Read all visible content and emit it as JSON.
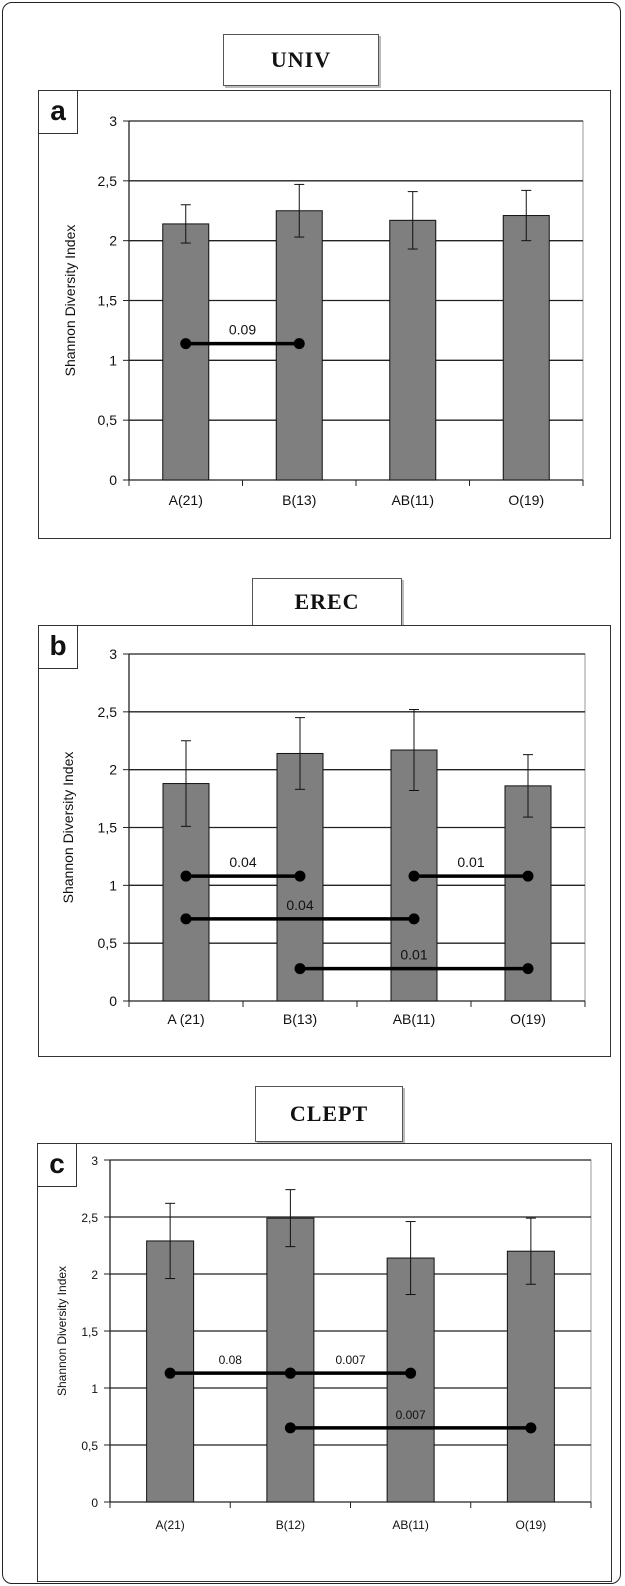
{
  "panels": [
    {
      "letter": "a",
      "title": "UNIV",
      "chart_data": {
        "type": "bar",
        "ylabel": "Shannon Diversity Index",
        "ylim": [
          0,
          3
        ],
        "yticks": [
          "0",
          "0,5",
          "1",
          "1,5",
          "2",
          "2,5",
          "3"
        ],
        "categories": [
          "A(21)",
          "B(13)",
          "AB(11)",
          "O(19)"
        ],
        "values": [
          2.14,
          2.25,
          2.17,
          2.21
        ],
        "errors": [
          0.16,
          0.22,
          0.24,
          0.21
        ],
        "grid": true,
        "comparisons": [
          {
            "from": 0,
            "to": 1,
            "y": 1.14,
            "label": "0.09"
          }
        ]
      }
    },
    {
      "letter": "b",
      "title": "EREC",
      "chart_data": {
        "type": "bar",
        "ylabel": "Shannon Diversity Index",
        "ylim": [
          0,
          3
        ],
        "yticks": [
          "0",
          "0,5",
          "1",
          "1,5",
          "2",
          "2,5",
          "3"
        ],
        "categories": [
          "A (21)",
          "B(13)",
          "AB(11)",
          "O(19)"
        ],
        "values": [
          1.88,
          2.14,
          2.17,
          1.86
        ],
        "errors": [
          0.37,
          0.31,
          0.35,
          0.27
        ],
        "grid": true,
        "comparisons": [
          {
            "from": 0,
            "to": 1,
            "y": 1.08,
            "label": "0.04"
          },
          {
            "from": 0,
            "to": 2,
            "y": 0.71,
            "label": "0.04"
          },
          {
            "from": 2,
            "to": 3,
            "y": 1.08,
            "label": "0.01"
          },
          {
            "from": 1,
            "to": 3,
            "y": 0.28,
            "label": "0.01"
          }
        ]
      }
    },
    {
      "letter": "c",
      "title": "CLEPT",
      "chart_data": {
        "type": "bar",
        "ylabel": "Shannon Diversity Index",
        "ylim": [
          0,
          3
        ],
        "yticks": [
          "0",
          "0,5",
          "1",
          "1,5",
          "2",
          "2,5",
          "3"
        ],
        "categories": [
          "A(21)",
          "B(12)",
          "AB(11)",
          "O(19)"
        ],
        "values": [
          2.29,
          2.49,
          2.14,
          2.2
        ],
        "errors": [
          0.33,
          0.25,
          0.32,
          0.29
        ],
        "grid": true,
        "comparisons": [
          {
            "from": 0,
            "to": 1,
            "y": 1.13,
            "label": "0.08"
          },
          {
            "from": 1,
            "to": 2,
            "y": 1.13,
            "label": "0.007"
          },
          {
            "from": 1,
            "to": 3,
            "y": 0.65,
            "label": "0.007"
          }
        ]
      }
    }
  ]
}
